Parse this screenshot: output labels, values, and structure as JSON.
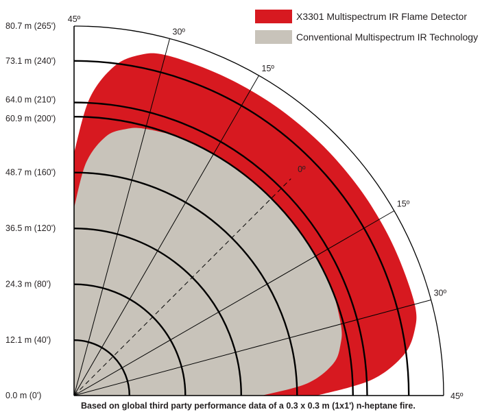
{
  "chart_data": {
    "type": "polar-coverage",
    "legend": [
      {
        "label": "X3301 Multispectrum IR Flame Detector",
        "color": "#d71920"
      },
      {
        "label": "Conventional Multispectrum IR Technology",
        "color": "#c8c3ba"
      }
    ],
    "radial_axis": {
      "ticks": [
        {
          "label": "0.0 m  (0')",
          "value": 0
        },
        {
          "label": "12.1 m  (40')",
          "value": 12.1
        },
        {
          "label": "24.3 m  (80')",
          "value": 24.3
        },
        {
          "label": "36.5 m  (120')",
          "value": 36.5
        },
        {
          "label": "48.7 m  (160')",
          "value": 48.7
        },
        {
          "label": "60.9 m  (200')",
          "value": 60.9
        },
        {
          "label": "64.0 m  (210')",
          "value": 64.0
        },
        {
          "label": "73.1 m  (240')",
          "value": 73.1
        },
        {
          "label": "80.7 m  (265')",
          "value": 80.7
        }
      ],
      "range": [
        0,
        80.7
      ]
    },
    "angle_axis": {
      "ticks": [
        {
          "label": "45º",
          "value": -45
        },
        {
          "label": "30º",
          "value": -30
        },
        {
          "label": "15º",
          "value": -15
        },
        {
          "label": "0º",
          "value": 0
        },
        {
          "label": "15º",
          "value": 15
        },
        {
          "label": "30º",
          "value": 30
        },
        {
          "label": "45º",
          "value": 45
        }
      ],
      "range": [
        -45,
        45
      ]
    },
    "series": [
      {
        "name": "X3301 Multispectrum IR Flame Detector",
        "color": "#d71920",
        "angles": [
          -45,
          -42,
          -38,
          -34,
          -30,
          -22,
          -15,
          -8,
          0,
          8,
          15,
          22,
          30,
          34,
          38,
          42,
          45
        ],
        "ranges": [
          53,
          65,
          72.5,
          75.8,
          77,
          77,
          77,
          77,
          77,
          77,
          77,
          77,
          77,
          75.8,
          72.5,
          65,
          53
        ]
      },
      {
        "name": "Conventional Multispectrum IR Technology",
        "color": "#c8c3ba",
        "angles": [
          -45,
          -42,
          -38,
          -34,
          -30,
          -22,
          -15,
          -8,
          0,
          8,
          15,
          22,
          30,
          34,
          38,
          42,
          45
        ],
        "ranges": [
          41,
          51,
          57,
          59.3,
          60.3,
          61,
          61,
          61,
          61,
          61,
          61,
          61,
          60.3,
          59.3,
          57,
          51,
          41
        ]
      }
    ],
    "note": "Based on global third party performance data of a 0.3 x 0.3 m (1x1') n-heptane fire."
  }
}
